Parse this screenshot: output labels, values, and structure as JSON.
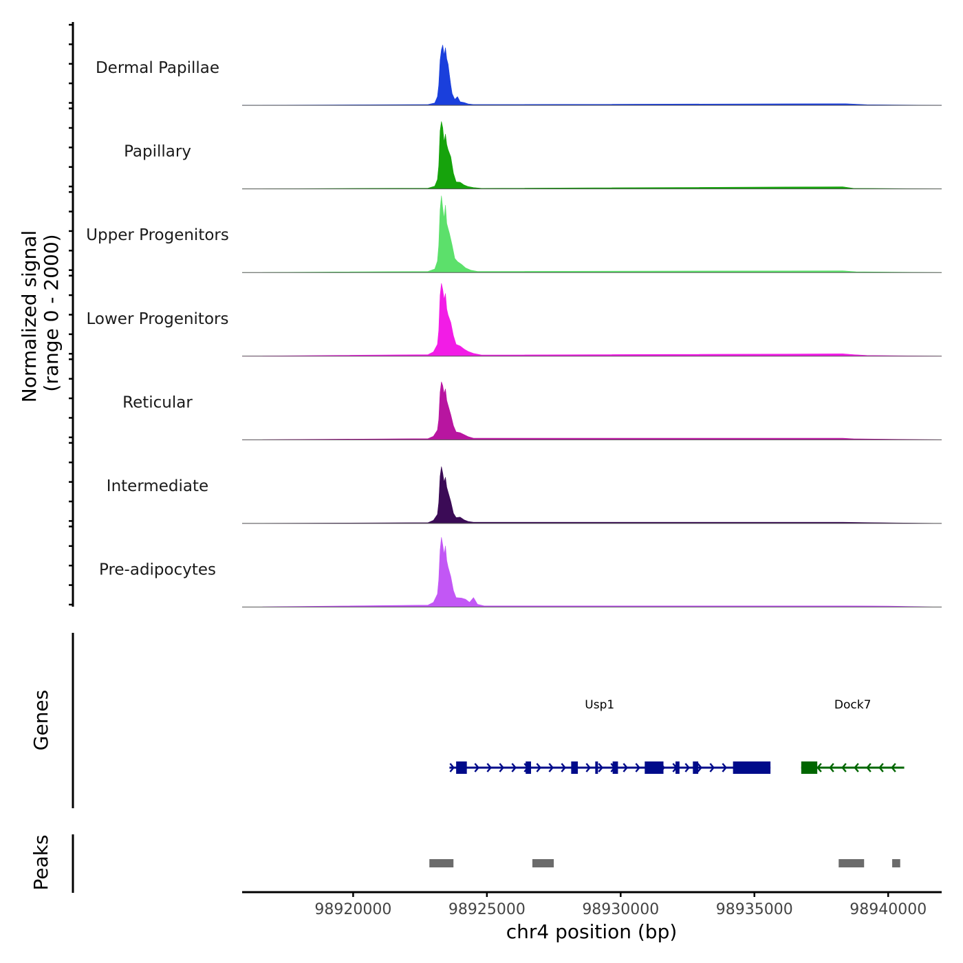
{
  "chart_data": {
    "type": "area",
    "title": "",
    "ylabel_line1": "Normalized signal",
    "ylabel_line2": "(range 0 - 2000)",
    "ylim": [
      0,
      2000
    ],
    "xlabel": "chr4 position (bp)",
    "xlim": [
      98915850,
      98942000
    ],
    "x_ticks": [
      98920000,
      98925000,
      98930000,
      98935000,
      98940000
    ],
    "x_tick_labels": [
      "98920000",
      "98925000",
      "98930000",
      "98935000",
      "98940000"
    ],
    "series": [
      {
        "name": "Dermal Papillae",
        "color": "#1a3fdc",
        "peak": 1540,
        "profile": [
          [
            98922800,
            20
          ],
          [
            98923050,
            60
          ],
          [
            98923150,
            220
          ],
          [
            98923200,
            520
          ],
          [
            98923250,
            1150
          ],
          [
            98923300,
            1420
          ],
          [
            98923350,
            1540
          ],
          [
            98923400,
            1280
          ],
          [
            98923450,
            1470
          ],
          [
            98923500,
            1180
          ],
          [
            98923550,
            1050
          ],
          [
            98923600,
            780
          ],
          [
            98923650,
            520
          ],
          [
            98923700,
            300
          ],
          [
            98923800,
            150
          ],
          [
            98923900,
            220
          ],
          [
            98924000,
            90
          ],
          [
            98924150,
            70
          ],
          [
            98924300,
            35
          ],
          [
            98924500,
            20
          ],
          [
            98938400,
            40
          ],
          [
            98939200,
            15
          ]
        ]
      },
      {
        "name": "Papillary",
        "color": "#16a30c",
        "peak": 1720,
        "profile": [
          [
            98922800,
            20
          ],
          [
            98923050,
            70
          ],
          [
            98923150,
            240
          ],
          [
            98923200,
            600
          ],
          [
            98923250,
            1480
          ],
          [
            98923300,
            1720
          ],
          [
            98923350,
            1560
          ],
          [
            98923400,
            1200
          ],
          [
            98923450,
            1400
          ],
          [
            98923500,
            1130
          ],
          [
            98923550,
            1000
          ],
          [
            98923650,
            820
          ],
          [
            98923750,
            400
          ],
          [
            98923850,
            180
          ],
          [
            98924000,
            170
          ],
          [
            98924150,
            100
          ],
          [
            98924300,
            60
          ],
          [
            98924500,
            35
          ],
          [
            98924800,
            15
          ],
          [
            98938300,
            55
          ],
          [
            98938700,
            15
          ]
        ]
      },
      {
        "name": "Upper Progenitors",
        "color": "#5ce06b",
        "peak": 1960,
        "profile": [
          [
            98922800,
            30
          ],
          [
            98923050,
            90
          ],
          [
            98923150,
            290
          ],
          [
            98923200,
            700
          ],
          [
            98923250,
            1600
          ],
          [
            98923300,
            1960
          ],
          [
            98923350,
            1640
          ],
          [
            98923400,
            1380
          ],
          [
            98923450,
            1720
          ],
          [
            98923500,
            1250
          ],
          [
            98923550,
            1120
          ],
          [
            98923600,
            1000
          ],
          [
            98923700,
            700
          ],
          [
            98923800,
            360
          ],
          [
            98923900,
            280
          ],
          [
            98924050,
            210
          ],
          [
            98924200,
            120
          ],
          [
            98924400,
            60
          ],
          [
            98924650,
            30
          ],
          [
            98938300,
            45
          ],
          [
            98938800,
            20
          ]
        ]
      },
      {
        "name": "Lower Progenitors",
        "color": "#f21ce6",
        "peak": 1860,
        "profile": [
          [
            98922800,
            40
          ],
          [
            98923000,
            110
          ],
          [
            98923150,
            300
          ],
          [
            98923200,
            660
          ],
          [
            98923250,
            1550
          ],
          [
            98923300,
            1860
          ],
          [
            98923350,
            1700
          ],
          [
            98923400,
            1450
          ],
          [
            98923450,
            1600
          ],
          [
            98923500,
            1200
          ],
          [
            98923550,
            1050
          ],
          [
            98923650,
            860
          ],
          [
            98923750,
            520
          ],
          [
            98923850,
            300
          ],
          [
            98924000,
            260
          ],
          [
            98924150,
            180
          ],
          [
            98924300,
            120
          ],
          [
            98924500,
            70
          ],
          [
            98924800,
            30
          ],
          [
            98938300,
            60
          ],
          [
            98938700,
            40
          ],
          [
            98939200,
            20
          ]
        ]
      },
      {
        "name": "Reticular",
        "color": "#b815a0",
        "peak": 1480,
        "profile": [
          [
            98922800,
            30
          ],
          [
            98923000,
            90
          ],
          [
            98923150,
            250
          ],
          [
            98923200,
            520
          ],
          [
            98923250,
            1210
          ],
          [
            98923300,
            1480
          ],
          [
            98923350,
            1380
          ],
          [
            98923400,
            1180
          ],
          [
            98923450,
            1300
          ],
          [
            98923500,
            1000
          ],
          [
            98923550,
            880
          ],
          [
            98923650,
            640
          ],
          [
            98923750,
            360
          ],
          [
            98923850,
            200
          ],
          [
            98924000,
            180
          ],
          [
            98924150,
            130
          ],
          [
            98924300,
            80
          ],
          [
            98924500,
            40
          ],
          [
            98938300,
            40
          ],
          [
            98938700,
            25
          ]
        ]
      },
      {
        "name": "Intermediate",
        "color": "#3b0b56",
        "peak": 1450,
        "profile": [
          [
            98922800,
            20
          ],
          [
            98923000,
            80
          ],
          [
            98923150,
            230
          ],
          [
            98923200,
            540
          ],
          [
            98923250,
            1200
          ],
          [
            98923300,
            1450
          ],
          [
            98923350,
            1280
          ],
          [
            98923400,
            1060
          ],
          [
            98923450,
            1180
          ],
          [
            98923500,
            920
          ],
          [
            98923550,
            800
          ],
          [
            98923650,
            560
          ],
          [
            98923750,
            260
          ],
          [
            98923850,
            150
          ],
          [
            98924000,
            160
          ],
          [
            98924150,
            90
          ],
          [
            98924300,
            50
          ],
          [
            98924500,
            30
          ],
          [
            98938300,
            30
          ]
        ]
      },
      {
        "name": "Pre-adipocytes",
        "color": "#c257f5",
        "peak": 1780,
        "profile": [
          [
            98922800,
            50
          ],
          [
            98923000,
            120
          ],
          [
            98923150,
            330
          ],
          [
            98923200,
            700
          ],
          [
            98923250,
            1450
          ],
          [
            98923300,
            1780
          ],
          [
            98923350,
            1580
          ],
          [
            98923400,
            1350
          ],
          [
            98923450,
            1560
          ],
          [
            98923500,
            1180
          ],
          [
            98923550,
            1020
          ],
          [
            98923650,
            780
          ],
          [
            98923750,
            420
          ],
          [
            98923850,
            240
          ],
          [
            98924050,
            230
          ],
          [
            98924200,
            200
          ],
          [
            98924350,
            120
          ],
          [
            98924500,
            240
          ],
          [
            98924650,
            70
          ],
          [
            98924900,
            30
          ],
          [
            98938300,
            30
          ],
          [
            98940000,
            25
          ]
        ]
      }
    ],
    "genes_label": "Genes",
    "genes": [
      {
        "name": "Usp1",
        "color": "#000b8a",
        "strand": "+",
        "start": 98923600,
        "end": 98935600,
        "exons": [
          [
            98923850,
            98924250
          ],
          [
            98926450,
            98926650
          ],
          [
            98928150,
            98928400
          ],
          [
            98929050,
            98929150
          ],
          [
            98929700,
            98929900
          ],
          [
            98930900,
            98931600
          ],
          [
            98932050,
            98932200
          ],
          [
            98932700,
            98932900
          ],
          [
            98934200,
            98935600
          ]
        ]
      },
      {
        "name": "Dock7",
        "color": "#006600",
        "strand": "-",
        "start": 98936750,
        "end": 98940600,
        "exons": [
          [
            98936750,
            98937350
          ]
        ]
      }
    ],
    "peaks_label": "Peaks",
    "peaks": [
      [
        98922850,
        98923750
      ],
      [
        98926700,
        98927500
      ],
      [
        98938150,
        98939100
      ],
      [
        98940150,
        98940450
      ]
    ]
  }
}
